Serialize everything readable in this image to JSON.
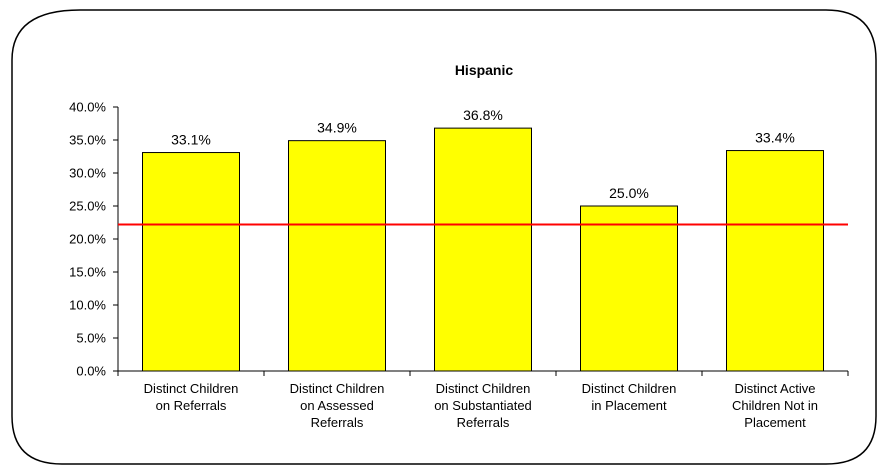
{
  "chart_data": {
    "type": "bar",
    "title": "Hispanic",
    "categories": [
      [
        "Distinct Children",
        "on Referrals"
      ],
      [
        "Distinct Children",
        "on Assessed",
        "Referrals"
      ],
      [
        "Distinct Children",
        "on Substantiated",
        "Referrals"
      ],
      [
        "Distinct Children",
        "in Placement"
      ],
      [
        "Distinct Active",
        "Children Not in",
        "Placement"
      ]
    ],
    "values": [
      33.1,
      34.9,
      36.8,
      25.0,
      33.4
    ],
    "data_labels": [
      "33.1%",
      "34.9%",
      "36.8%",
      "25.0%",
      "33.4%"
    ],
    "ylim": [
      0,
      40
    ],
    "yticks": [
      "0.0%",
      "5.0%",
      "10.0%",
      "15.0%",
      "20.0%",
      "25.0%",
      "30.0%",
      "35.0%",
      "40.0%"
    ],
    "reference_line": 22.2,
    "grid": false,
    "legend": "none",
    "colors": {
      "bar_fill": "#ffff00",
      "bar_stroke": "#000000",
      "reference_line": "#ff0000",
      "frame": "#000000"
    }
  }
}
